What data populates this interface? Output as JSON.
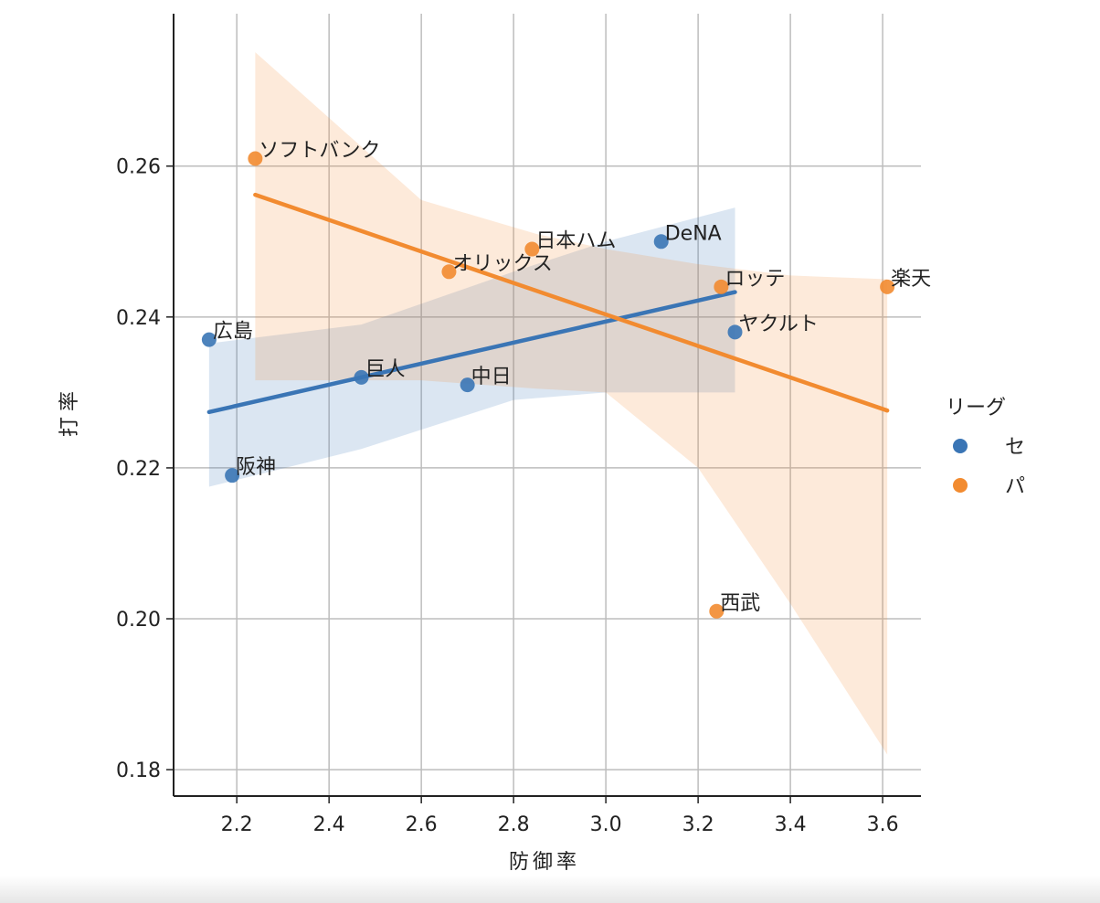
{
  "chart_data": {
    "type": "scatter",
    "title": "",
    "xlabel": "防御率",
    "ylabel": "打率",
    "xlim": [
      2.063,
      3.683
    ],
    "ylim": [
      0.1765,
      0.2802
    ],
    "xticks": [
      "2.2",
      "2.4",
      "2.6",
      "2.8",
      "3.0",
      "3.2",
      "3.4",
      "3.6"
    ],
    "yticks": [
      "0.18",
      "0.20",
      "0.22",
      "0.24",
      "0.26"
    ],
    "grid": true,
    "legend": {
      "title": "リーグ",
      "placement": "right",
      "entries": [
        "セ",
        "パ"
      ]
    },
    "colors": {
      "セ": "#3a75b5",
      "パ": "#f28b30"
    },
    "points": [
      {
        "team": "広島",
        "league": "セ",
        "x": 2.14,
        "y": 0.237
      },
      {
        "team": "阪神",
        "league": "セ",
        "x": 2.19,
        "y": 0.219
      },
      {
        "team": "巨人",
        "league": "セ",
        "x": 2.47,
        "y": 0.232
      },
      {
        "team": "中日",
        "league": "セ",
        "x": 2.7,
        "y": 0.231
      },
      {
        "team": "DeNA",
        "league": "セ",
        "x": 3.12,
        "y": 0.25
      },
      {
        "team": "ヤクルト",
        "league": "セ",
        "x": 3.28,
        "y": 0.238
      },
      {
        "team": "ソフトバンク",
        "league": "パ",
        "x": 2.24,
        "y": 0.261
      },
      {
        "team": "オリックス",
        "league": "パ",
        "x": 2.66,
        "y": 0.246
      },
      {
        "team": "日本ハム",
        "league": "パ",
        "x": 2.84,
        "y": 0.249
      },
      {
        "team": "ロッテ",
        "league": "パ",
        "x": 3.25,
        "y": 0.244
      },
      {
        "team": "西武",
        "league": "パ",
        "x": 3.24,
        "y": 0.201
      },
      {
        "team": "楽天",
        "league": "パ",
        "x": 3.61,
        "y": 0.244
      }
    ],
    "regression": [
      {
        "league": "セ",
        "x": [
          2.14,
          3.28
        ],
        "y": [
          0.2274,
          0.2433
        ],
        "ci": [
          [
            2.14,
            0.2175,
            0.2365
          ],
          [
            2.47,
            0.2225,
            0.239
          ],
          [
            2.8,
            0.229,
            0.246
          ],
          [
            3.0,
            0.23,
            0.25
          ],
          [
            3.28,
            0.23,
            0.2545
          ]
        ]
      },
      {
        "league": "パ",
        "x": [
          2.24,
          3.61
        ],
        "y": [
          0.2562,
          0.2276
        ],
        "ci": [
          [
            2.24,
            0.2316,
            0.2751
          ],
          [
            2.6,
            0.2316,
            0.2555
          ],
          [
            2.85,
            0.2305,
            0.251
          ],
          [
            3.0,
            0.23,
            0.249
          ],
          [
            3.2,
            0.22,
            0.247
          ],
          [
            3.4,
            0.202,
            0.2455
          ],
          [
            3.61,
            0.182,
            0.245
          ]
        ]
      }
    ]
  }
}
